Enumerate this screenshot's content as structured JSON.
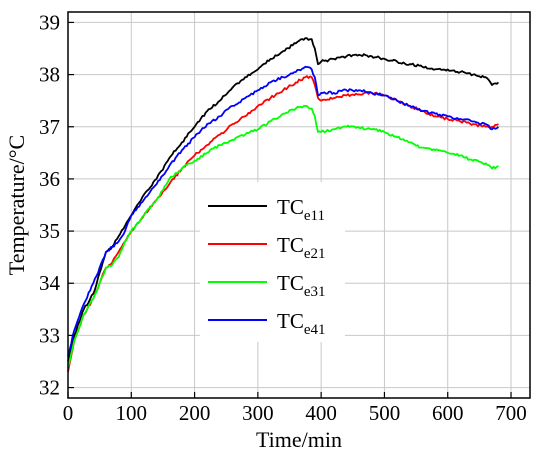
{
  "chart_data": {
    "type": "line",
    "xlabel": "Time/min",
    "ylabel": "Temperature/°C",
    "xlim": [
      0,
      730
    ],
    "ylim": [
      31.8,
      39.2
    ],
    "xticks": [
      0,
      100,
      200,
      300,
      400,
      500,
      600,
      700
    ],
    "yticks": [
      32,
      33,
      34,
      35,
      36,
      37,
      38,
      39
    ],
    "grid": true,
    "legend_position": "center",
    "series": [
      {
        "name": "TCe11",
        "legend_main": "TC",
        "legend_sub": "e11",
        "color": "#000000",
        "x": [
          0,
          10,
          25,
          40,
          50,
          60,
          70,
          80,
          90,
          100,
          120,
          140,
          160,
          180,
          200,
          220,
          240,
          260,
          280,
          300,
          320,
          340,
          360,
          375,
          385,
          390,
          395,
          400,
          420,
          440,
          460,
          480,
          500,
          520,
          540,
          560,
          580,
          600,
          620,
          640,
          660,
          670,
          680
        ],
        "y": [
          32.5,
          33.0,
          33.5,
          33.8,
          34.2,
          34.6,
          34.7,
          34.9,
          35.1,
          35.3,
          35.7,
          36.0,
          36.4,
          36.7,
          37.0,
          37.3,
          37.5,
          37.75,
          37.95,
          38.1,
          38.3,
          38.45,
          38.6,
          38.7,
          38.68,
          38.5,
          38.2,
          38.25,
          38.3,
          38.35,
          38.38,
          38.35,
          38.3,
          38.25,
          38.2,
          38.15,
          38.1,
          38.1,
          38.05,
          38.0,
          37.95,
          37.8,
          37.85
        ]
      },
      {
        "name": "TCe21",
        "legend_main": "TC",
        "legend_sub": "e21",
        "color": "#ff0000",
        "x": [
          0,
          10,
          25,
          40,
          50,
          60,
          70,
          80,
          90,
          100,
          120,
          140,
          160,
          180,
          200,
          220,
          240,
          260,
          280,
          300,
          320,
          340,
          360,
          375,
          385,
          390,
          395,
          400,
          420,
          440,
          460,
          480,
          500,
          520,
          540,
          560,
          580,
          600,
          620,
          640,
          660,
          670,
          680
        ],
        "y": [
          32.3,
          32.9,
          33.4,
          33.7,
          34.0,
          34.3,
          34.4,
          34.6,
          34.8,
          35.0,
          35.3,
          35.6,
          35.9,
          36.2,
          36.45,
          36.65,
          36.85,
          37.05,
          37.2,
          37.4,
          37.55,
          37.7,
          37.85,
          37.95,
          37.95,
          37.8,
          37.55,
          37.5,
          37.55,
          37.6,
          37.62,
          37.65,
          37.6,
          37.5,
          37.4,
          37.3,
          37.2,
          37.15,
          37.1,
          37.05,
          37.0,
          37.0,
          37.05
        ]
      },
      {
        "name": "TCe31",
        "legend_main": "TC",
        "legend_sub": "e31",
        "color": "#00ff00",
        "x": [
          0,
          10,
          25,
          40,
          50,
          60,
          70,
          80,
          90,
          100,
          120,
          140,
          160,
          180,
          200,
          220,
          240,
          260,
          280,
          300,
          320,
          340,
          360,
          375,
          385,
          390,
          395,
          400,
          420,
          440,
          460,
          480,
          500,
          520,
          540,
          560,
          580,
          600,
          620,
          640,
          660,
          670,
          680
        ],
        "y": [
          32.4,
          32.9,
          33.4,
          33.7,
          34.0,
          34.3,
          34.35,
          34.5,
          34.8,
          35.0,
          35.3,
          35.6,
          36.0,
          36.2,
          36.35,
          36.5,
          36.65,
          36.75,
          36.85,
          36.95,
          37.1,
          37.25,
          37.35,
          37.4,
          37.35,
          37.2,
          36.9,
          36.9,
          36.95,
          37.0,
          36.98,
          36.95,
          36.9,
          36.8,
          36.7,
          36.6,
          36.55,
          36.5,
          36.45,
          36.35,
          36.3,
          36.2,
          36.25
        ]
      },
      {
        "name": "TCe41",
        "legend_main": "TC",
        "legend_sub": "e41",
        "color": "#0000ff",
        "x": [
          0,
          10,
          25,
          40,
          50,
          60,
          70,
          80,
          90,
          100,
          120,
          140,
          160,
          180,
          200,
          220,
          240,
          260,
          280,
          300,
          320,
          340,
          360,
          375,
          385,
          390,
          395,
          400,
          420,
          440,
          460,
          480,
          500,
          520,
          540,
          560,
          580,
          600,
          620,
          640,
          660,
          670,
          680
        ],
        "y": [
          32.6,
          33.1,
          33.6,
          34.0,
          34.3,
          34.6,
          34.7,
          34.8,
          35.0,
          35.3,
          35.6,
          35.9,
          36.25,
          36.55,
          36.8,
          37.05,
          37.2,
          37.4,
          37.55,
          37.7,
          37.85,
          37.95,
          38.05,
          38.15,
          38.1,
          37.95,
          37.6,
          37.65,
          37.65,
          37.7,
          37.7,
          37.65,
          37.6,
          37.5,
          37.4,
          37.3,
          37.25,
          37.2,
          37.15,
          37.1,
          37.05,
          36.95,
          37.0
        ]
      }
    ]
  }
}
